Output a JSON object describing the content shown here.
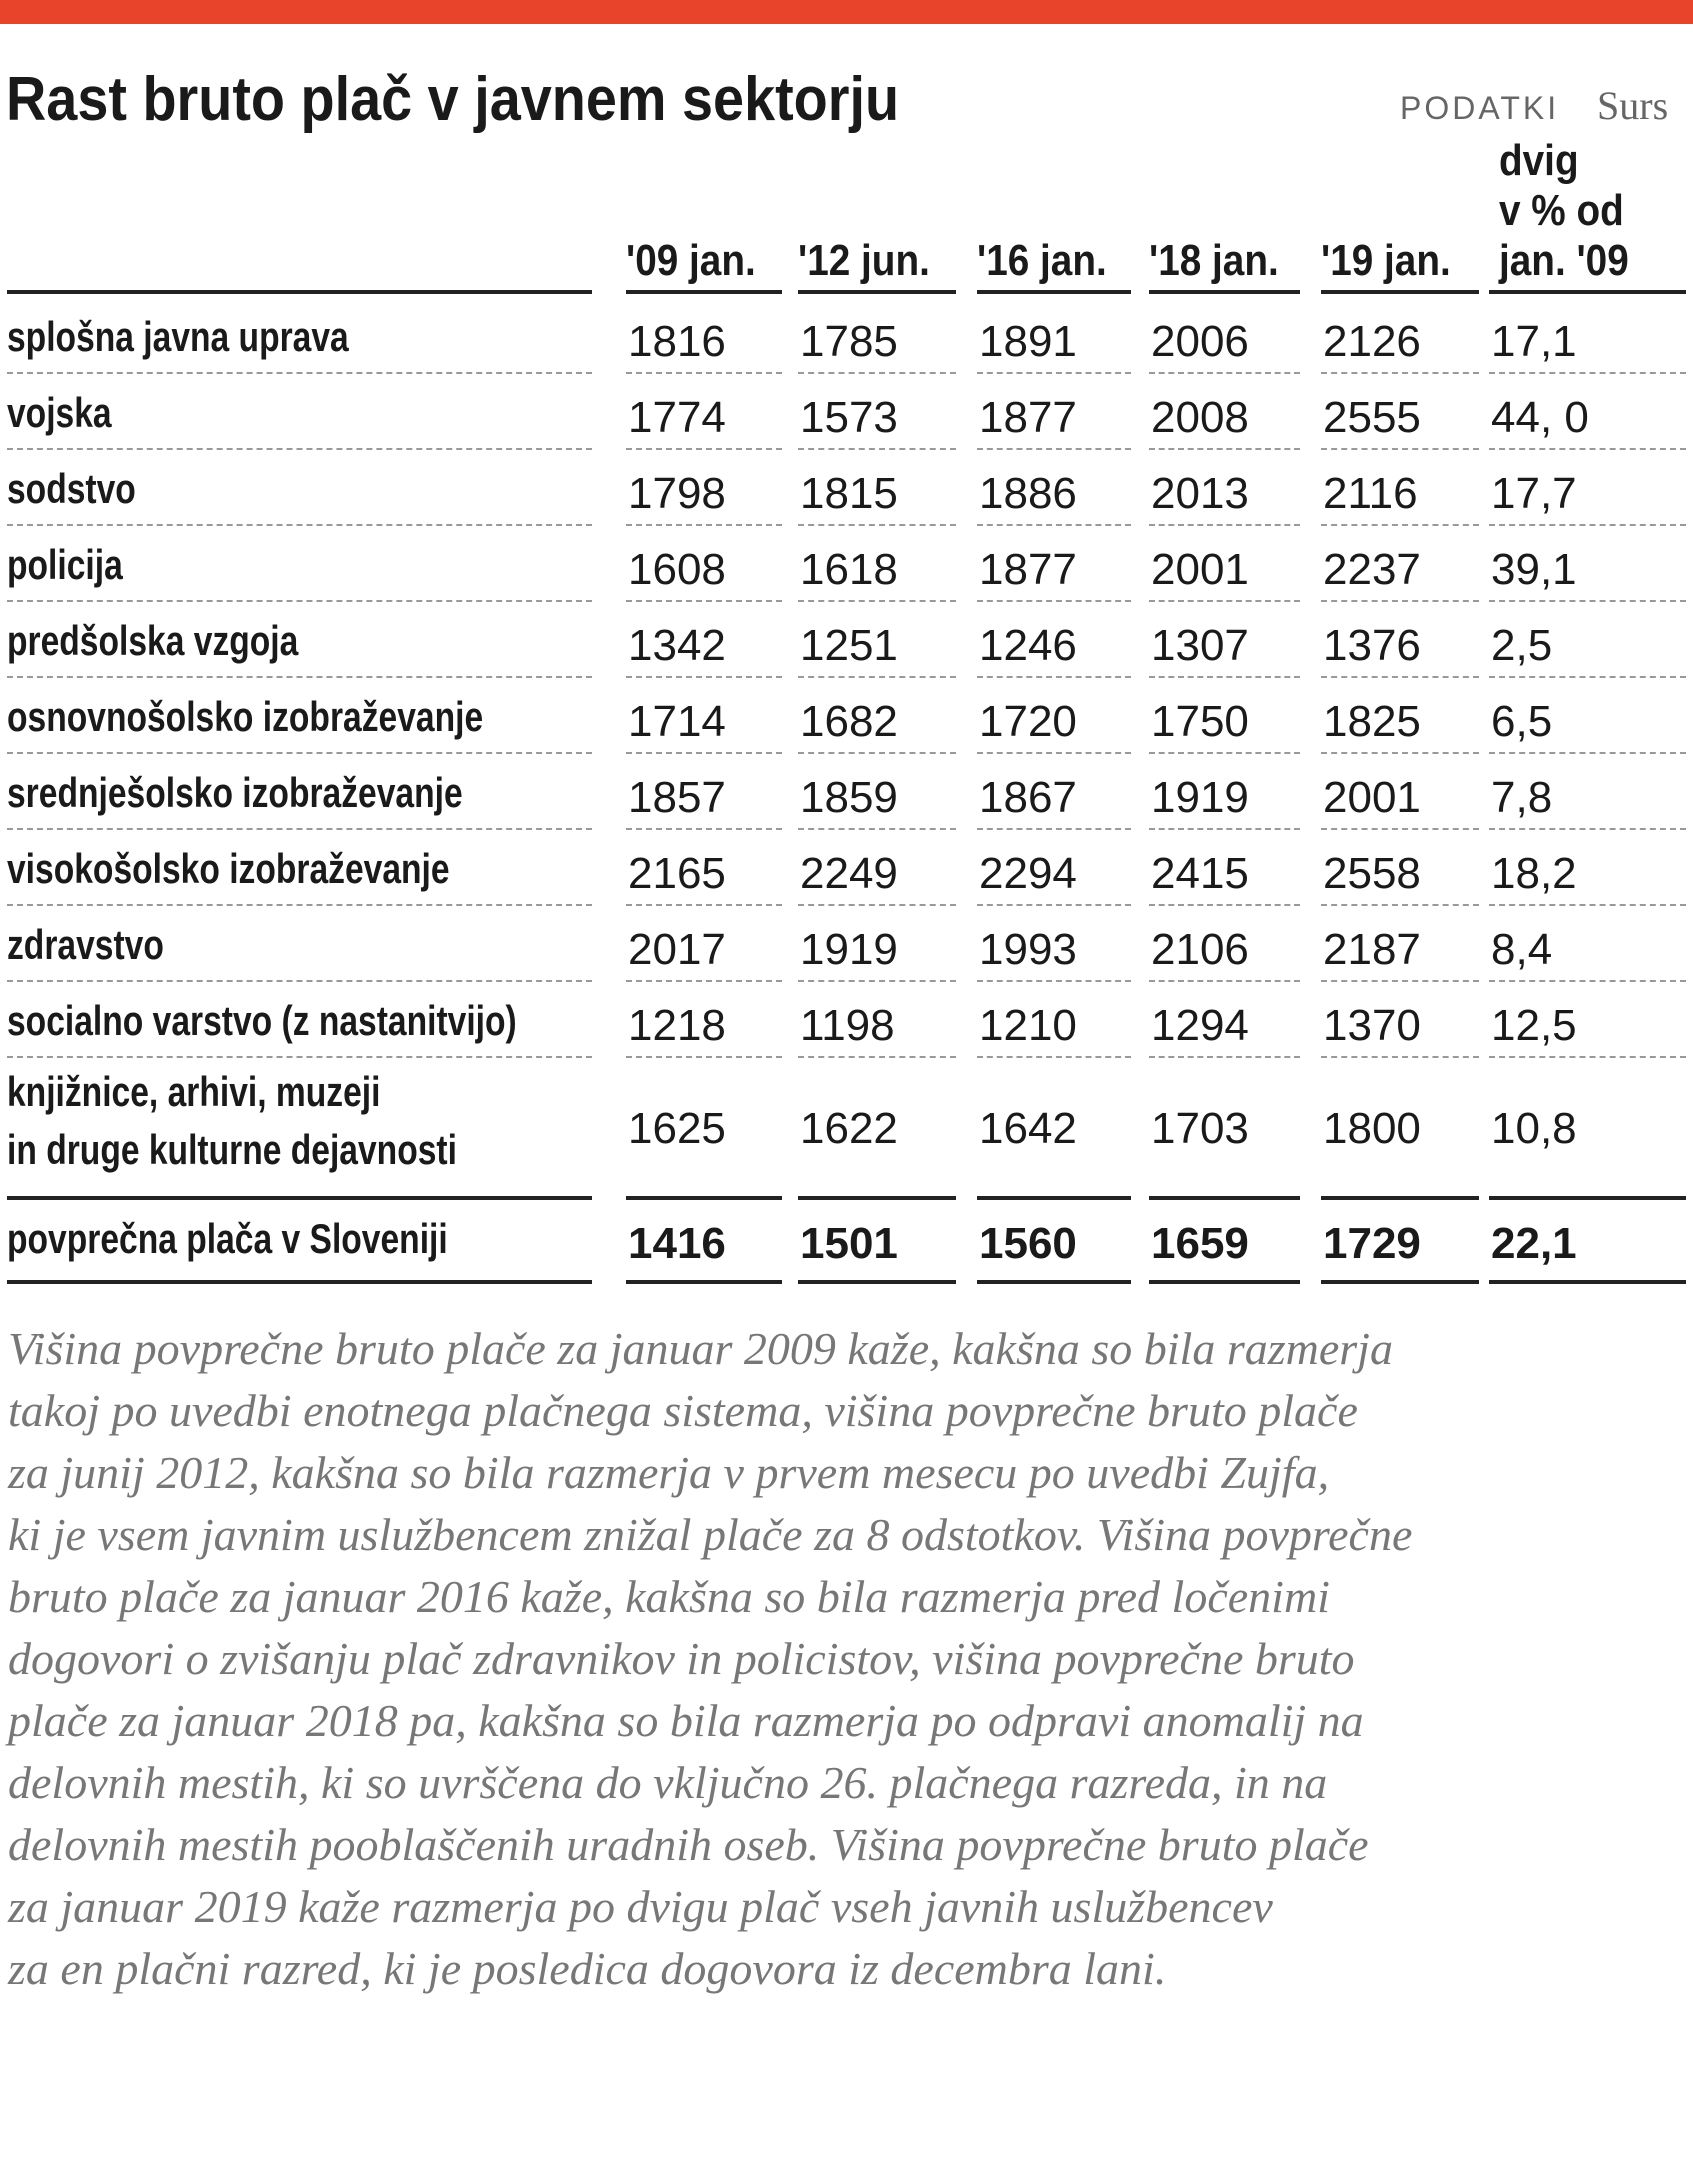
{
  "header": {
    "title": "Rast bruto plač v javnem sektorju",
    "source_label": "PODATKI",
    "source": "Surs"
  },
  "table": {
    "columns": [
      "'09 jan.",
      "'12 jun.",
      "'16 jan.",
      "'18 jan.",
      "'19 jan.",
      [
        "dvig",
        "v % od",
        "jan. '09"
      ]
    ],
    "rows": [
      [
        "splošna javna uprava",
        "1816",
        "1785",
        "1891",
        "2006",
        "2126",
        "17,1"
      ],
      [
        "vojska",
        "1774",
        "1573",
        "1877",
        "2008",
        "2555",
        "44, 0"
      ],
      [
        "sodstvo",
        "1798",
        "1815",
        "1886",
        "2013",
        "2116",
        "17,7"
      ],
      [
        "policija",
        "1608",
        "1618",
        "1877",
        "2001",
        "2237",
        "39,1"
      ],
      [
        "predšolska vzgoja",
        "1342",
        "1251",
        "1246",
        "1307",
        "1376",
        "2,5"
      ],
      [
        "osnovnošolsko izobraževanje",
        "1714",
        "1682",
        "1720",
        "1750",
        "1825",
        "6,5"
      ],
      [
        "srednješolsko izobraževanje",
        "1857",
        "1859",
        "1867",
        "1919",
        "2001",
        "7,8"
      ],
      [
        "visokošolsko izobraževanje",
        "2165",
        "2249",
        "2294",
        "2415",
        "2558",
        "18,2"
      ],
      [
        "zdravstvo",
        "2017",
        "1919",
        "1993",
        "2106",
        "2187",
        "8,4"
      ],
      [
        "socialno varstvo (z nastanitvijo)",
        "1218",
        "1198",
        "1210",
        "1294",
        "1370",
        "12,5"
      ],
      [
        [
          "knjižnice, arhivi, muzeji",
          "in druge kulturne dejavnosti"
        ],
        "1625",
        "1622",
        "1642",
        "1703",
        "1800",
        "10,8"
      ]
    ],
    "total": [
      "povprečna plača v Sloveniji",
      "1416",
      "1501",
      "1560",
      "1659",
      "1729",
      "22,1"
    ]
  },
  "note": [
    "Višina povprečne bruto plače za januar 2009 kaže, kakšna so bila razmerja",
    "takoj po uvedbi enotnega plačnega sistema, višina povprečne bruto plače",
    "za junij 2012, kakšna so bila razmerja v prvem mesecu po uvedbi Zujfa,",
    "ki je vsem javnim uslužbencem znižal plače za 8 odstotkov. Višina povprečne",
    "bruto plače za januar 2016 kaže, kakšna so bila razmerja pred ločenimi",
    "dogovori o zvišanju plač zdravnikov in policistov, višina povprečne bruto",
    "plače za januar 2018  pa, kakšna so bila razmerja po odpravi anomalij na",
    "delovnih mestih, ki so uvrščena do vključno 26. plačnega razreda, in na",
    "delovnih mestih pooblaščenih uradnih oseb. Višina povprečne bruto plače",
    "za januar 2019  kaže razmerja po dvigu plač vseh javnih uslužbencev",
    "za en plačni razred, ki je posledica dogovora iz decembra lani."
  ]
}
